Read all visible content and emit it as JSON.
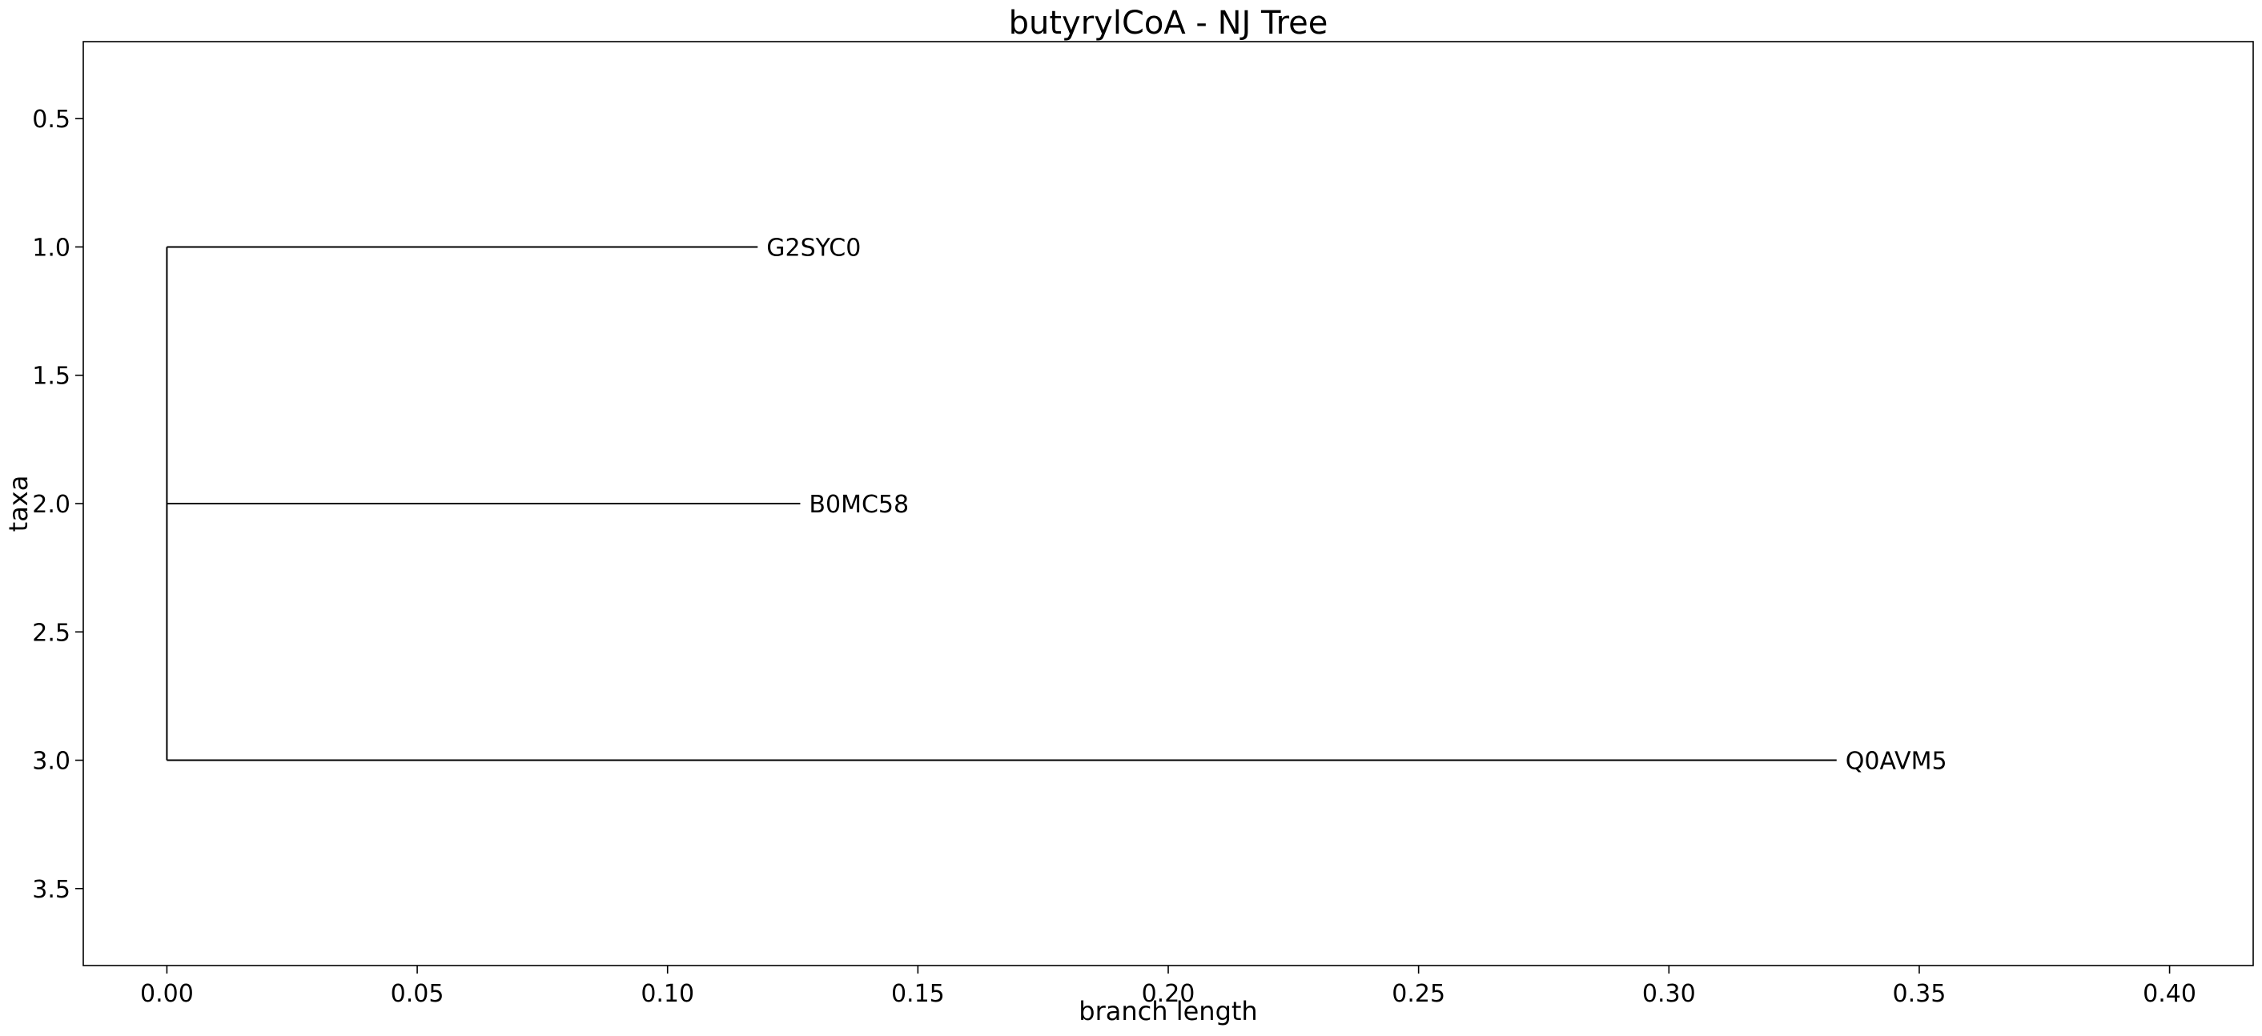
{
  "chart_data": {
    "type": "line",
    "title": "butyrylCoA - NJ Tree",
    "xlabel": "branch length",
    "ylabel": "taxa",
    "xlim": [
      -0.0167,
      0.4167
    ],
    "ylim": [
      3.8,
      0.2
    ],
    "y_inverted": true,
    "grid": false,
    "legend": "none",
    "xticks": [
      0.0,
      0.05,
      0.1,
      0.15,
      0.2,
      0.25,
      0.3,
      0.35,
      0.4
    ],
    "xtick_labels": [
      "0.00",
      "0.05",
      "0.10",
      "0.15",
      "0.20",
      "0.25",
      "0.30",
      "0.35",
      "0.40"
    ],
    "yticks": [
      0.5,
      1.0,
      1.5,
      2.0,
      2.5,
      3.0,
      3.5
    ],
    "ytick_labels": [
      "0.5",
      "1.0",
      "1.5",
      "2.0",
      "2.5",
      "3.0",
      "3.5"
    ],
    "root": {
      "x": 0.0,
      "y_span": [
        1.0,
        3.0
      ]
    },
    "leaves": [
      {
        "name": "G2SYC0",
        "y": 1.0,
        "branch_length": 0.118
      },
      {
        "name": "B0MC58",
        "y": 2.0,
        "branch_length": 0.1265
      },
      {
        "name": "Q0AVM5",
        "y": 3.0,
        "branch_length": 0.3335
      }
    ],
    "line_color": "#000000"
  }
}
